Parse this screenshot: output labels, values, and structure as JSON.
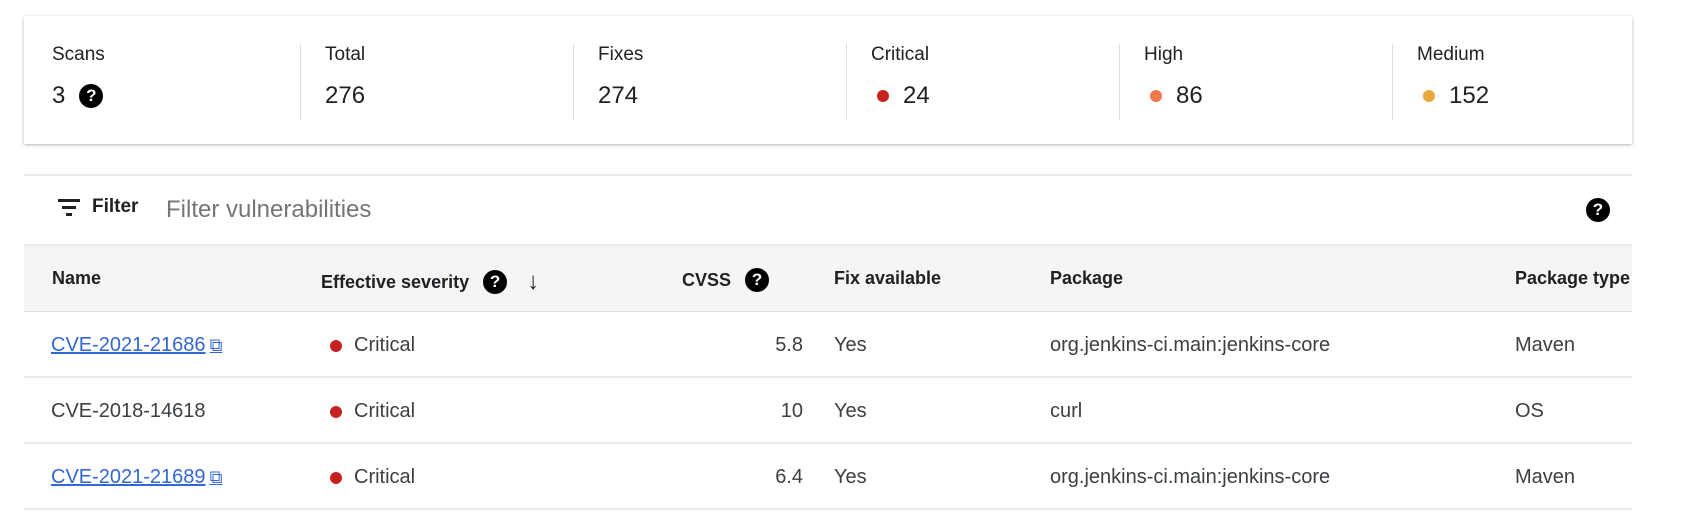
{
  "summary": [
    {
      "label": "Scans",
      "value": "3",
      "help": true
    },
    {
      "label": "Total",
      "value": "276"
    },
    {
      "label": "Fixes",
      "value": "274"
    },
    {
      "label": "Critical",
      "value": "24",
      "color": "#c5221f"
    },
    {
      "label": "High",
      "value": "86",
      "color": "#ee7a4c"
    },
    {
      "label": "Medium",
      "value": "152",
      "color": "#e8a93a"
    }
  ],
  "filter": {
    "label": "Filter",
    "placeholder": "Filter vulnerabilities"
  },
  "table": {
    "headers": [
      "Name",
      "Effective severity",
      "CVSS",
      "Fix available",
      "Package",
      "Package type"
    ],
    "sort": "descending",
    "rows": [
      {
        "name": "CVE-2021-21686",
        "link": true,
        "severity": "Critical",
        "cvss": "5.8",
        "fix": "Yes",
        "package": "org.jenkins-ci.main:jenkins-core",
        "type": "Maven"
      },
      {
        "name": "CVE-2018-14618",
        "link": false,
        "severity": "Critical",
        "cvss": "10",
        "fix": "Yes",
        "package": "curl",
        "type": "OS"
      },
      {
        "name": "CVE-2021-21689",
        "link": true,
        "severity": "Critical",
        "cvss": "6.4",
        "fix": "Yes",
        "package": "org.jenkins-ci.main:jenkins-core",
        "type": "Maven"
      }
    ]
  },
  "colors": {
    "critical": "#c5221f",
    "link": "#3367d6"
  }
}
